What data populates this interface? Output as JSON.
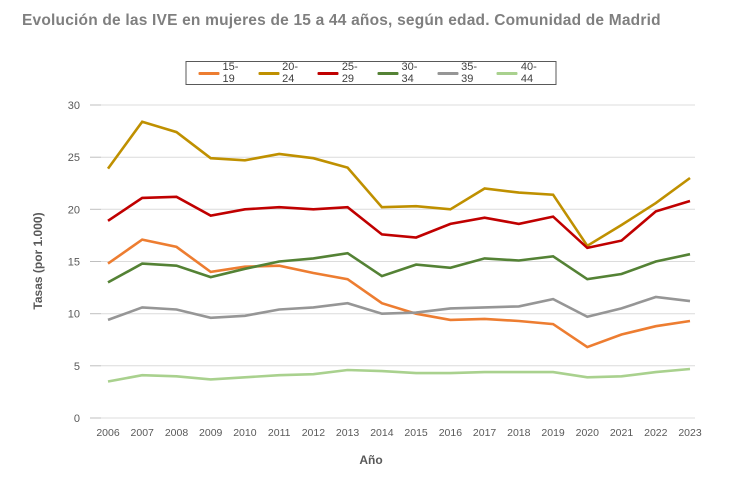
{
  "chart_data": {
    "type": "line",
    "title": "Evolución de las IVE en mujeres de 15 a 44 años, según edad. Comunidad de Madrid",
    "xlabel": "Año",
    "ylabel": "Tasas (por 1.000)",
    "ylim": [
      0,
      30
    ],
    "yticks": [
      0,
      5,
      10,
      15,
      20,
      25,
      30
    ],
    "grid": true,
    "legend_position": "top",
    "title_color": "#7f7f7f",
    "gridline_color": "#dcdcdc",
    "tick_label_color": "#595959",
    "categories": [
      "2006",
      "2007",
      "2008",
      "2009",
      "2010",
      "2011",
      "2012",
      "2013",
      "2014",
      "2015",
      "2016",
      "2017",
      "2018",
      "2019",
      "2020",
      "2021",
      "2022",
      "2023"
    ],
    "series": [
      {
        "name": "15-19",
        "color": "#ED7D31",
        "values": [
          14.8,
          17.1,
          16.4,
          14.0,
          14.5,
          14.6,
          13.9,
          13.3,
          11.0,
          10.0,
          9.4,
          9.5,
          9.3,
          9.0,
          6.8,
          8.0,
          8.8,
          9.3
        ]
      },
      {
        "name": "20-24",
        "color": "#BF9000",
        "values": [
          23.9,
          28.4,
          27.4,
          24.9,
          24.7,
          25.3,
          24.9,
          24.0,
          20.2,
          20.3,
          20.0,
          22.0,
          21.6,
          21.4,
          16.5,
          18.5,
          20.6,
          23.0
        ]
      },
      {
        "name": "25-29",
        "color": "#C00000",
        "values": [
          18.9,
          21.1,
          21.2,
          19.4,
          20.0,
          20.2,
          20.0,
          20.2,
          17.6,
          17.3,
          18.6,
          19.2,
          18.6,
          19.3,
          16.3,
          17.0,
          19.8,
          20.8
        ]
      },
      {
        "name": "30-34",
        "color": "#548235",
        "values": [
          13.0,
          14.8,
          14.6,
          13.5,
          14.3,
          15.0,
          15.3,
          15.8,
          13.6,
          14.7,
          14.4,
          15.3,
          15.1,
          15.5,
          13.3,
          13.8,
          15.0,
          15.7
        ]
      },
      {
        "name": "35-39",
        "color": "#969696",
        "values": [
          9.4,
          10.6,
          10.4,
          9.6,
          9.8,
          10.4,
          10.6,
          11.0,
          10.0,
          10.1,
          10.5,
          10.6,
          10.7,
          11.4,
          9.7,
          10.5,
          11.6,
          11.2
        ]
      },
      {
        "name": "40-44",
        "color": "#A9D18E",
        "values": [
          3.5,
          4.1,
          4.0,
          3.7,
          3.9,
          4.1,
          4.2,
          4.6,
          4.5,
          4.3,
          4.3,
          4.4,
          4.4,
          4.4,
          3.9,
          4.0,
          4.4,
          4.7
        ]
      }
    ]
  }
}
